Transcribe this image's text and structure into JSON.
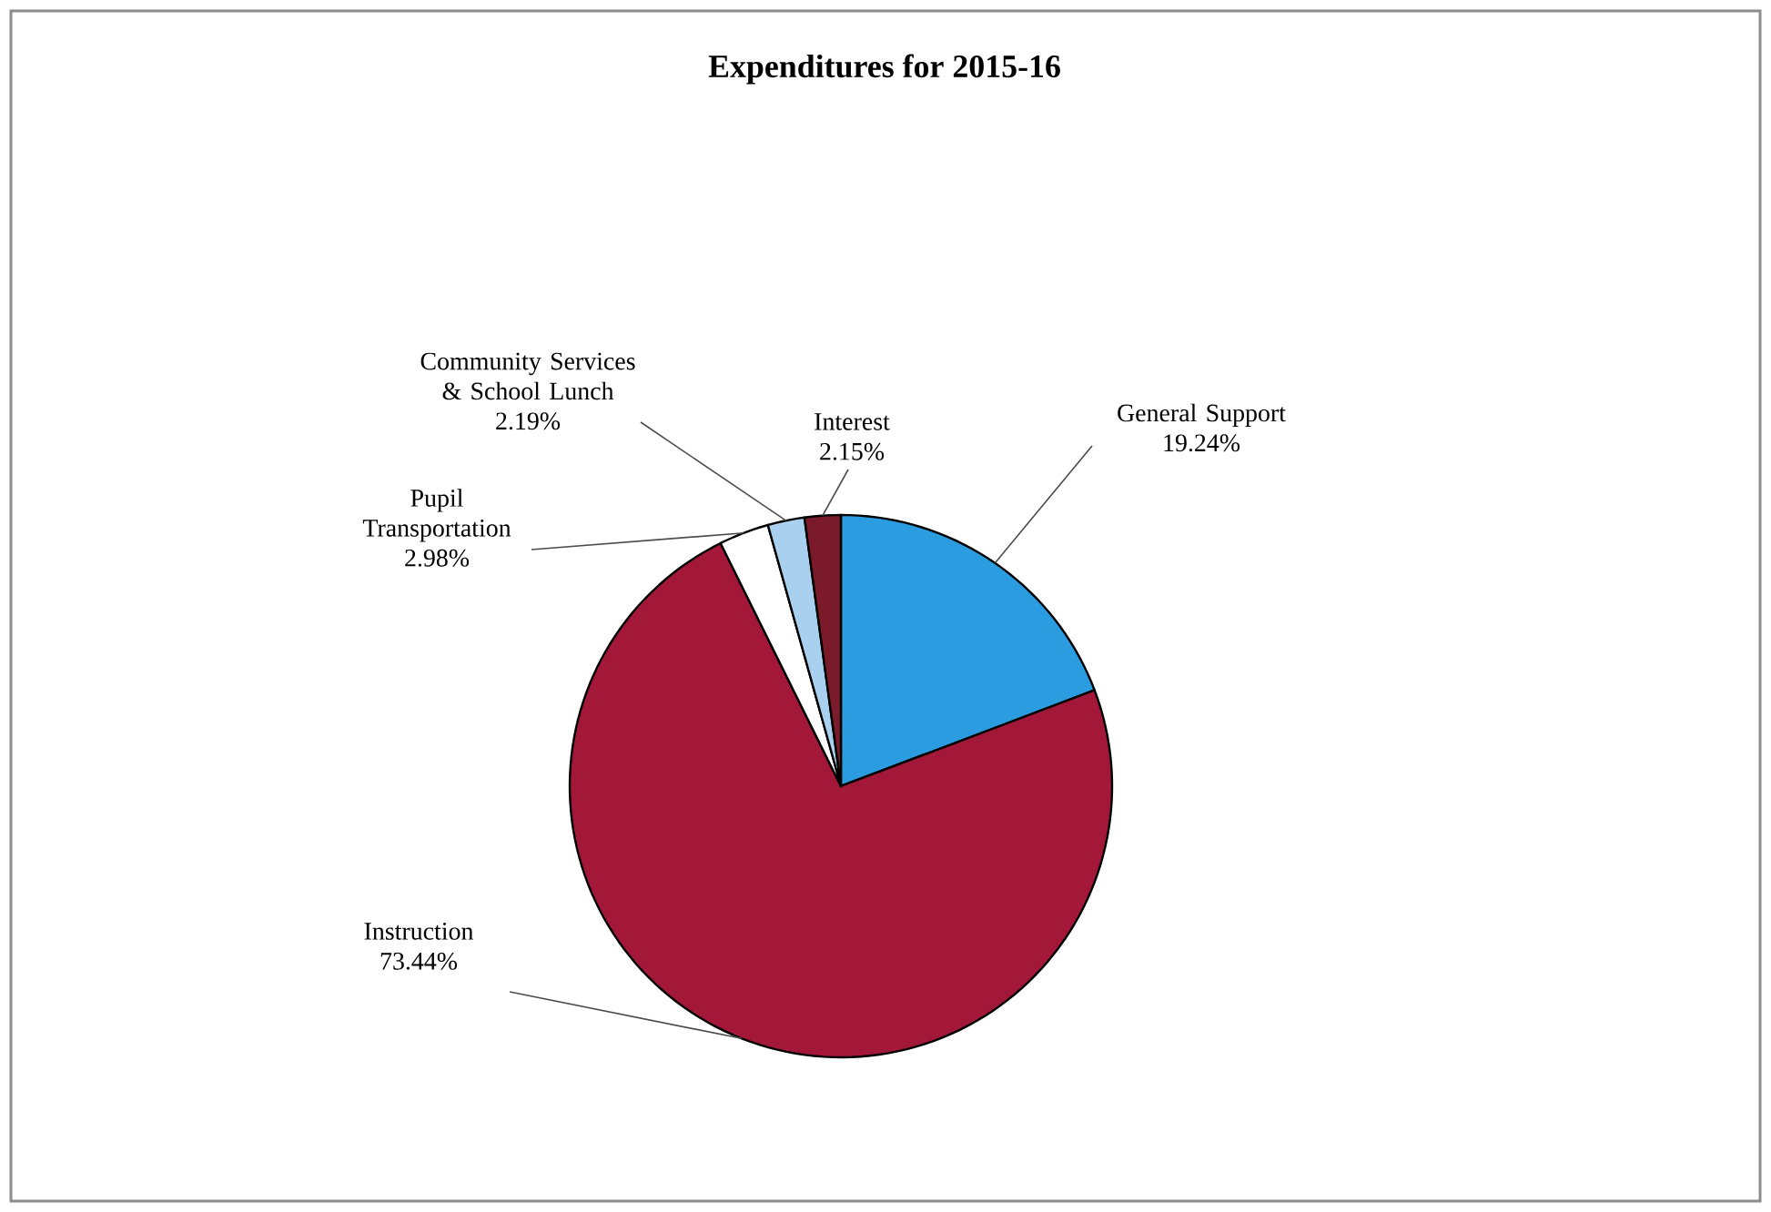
{
  "chart_data": {
    "type": "pie",
    "title": "Expenditures for 2015-16",
    "categories": [
      "General Support",
      "Instruction",
      "Pupil Transportation",
      "Community Services & School Lunch",
      "Interest"
    ],
    "values": [
      19.24,
      73.44,
      2.98,
      2.19,
      2.15
    ],
    "value_labels": [
      "19.24%",
      "73.44%",
      "2.98%",
      "2.19%",
      "2.15%"
    ],
    "colors": [
      "#2b9ce0",
      "#a31838",
      "#ffffff",
      "#a9d0ee",
      "#7a1a2a"
    ]
  }
}
